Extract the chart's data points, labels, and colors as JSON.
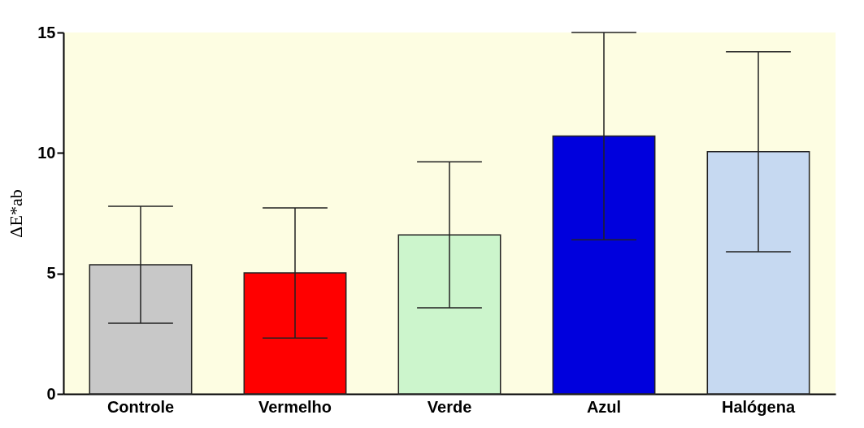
{
  "chart_data": {
    "type": "bar",
    "ylabel": "ΔE*ab",
    "categories": [
      "Controle",
      "Vermelho",
      "Verde",
      "Azul",
      "Halógena"
    ],
    "values": [
      5.36,
      5.02,
      6.6,
      10.7,
      10.05
    ],
    "errors": [
      2.43,
      2.7,
      3.03,
      4.3,
      4.15
    ],
    "colors": [
      "#c8c8c8",
      "#ff0000",
      "#ccf5cc",
      "#0000dd",
      "#c6d9f1"
    ],
    "ylim": [
      0,
      15
    ],
    "yticks": [
      0,
      5,
      10,
      15
    ],
    "grid": false,
    "legend": false
  }
}
